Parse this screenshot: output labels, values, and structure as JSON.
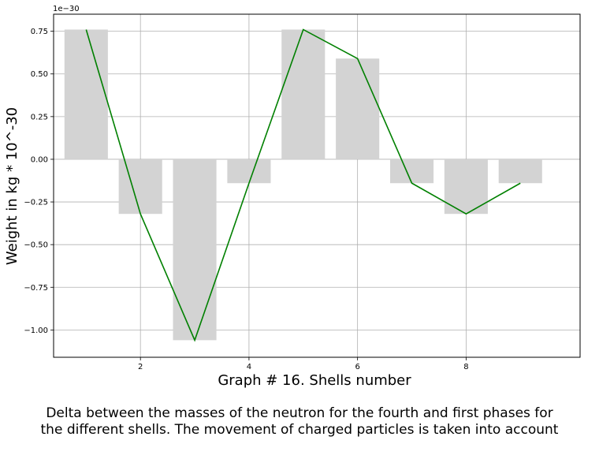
{
  "chart_data": {
    "type": "bar",
    "x": [
      1,
      2,
      3,
      4,
      5,
      6,
      7,
      8,
      9
    ],
    "values": [
      0.76,
      -0.32,
      -1.06,
      -0.14,
      0.76,
      0.59,
      -0.14,
      -0.32,
      -0.14
    ],
    "line_values": [
      0.76,
      -0.32,
      -1.06,
      -0.14,
      0.76,
      0.59,
      -0.14,
      -0.32,
      -0.14
    ],
    "scale_label": "1e−30",
    "xlabel": "Graph # 16. Shells number",
    "ylabel": "Weight in kg * 10^-30",
    "xlim": [
      0.4,
      10.1
    ],
    "ylim": [
      -1.16,
      0.85
    ],
    "xticks": [
      2,
      4,
      6,
      8
    ],
    "xtick_labels": [
      "2",
      "4",
      "6",
      "8"
    ],
    "yticks": [
      0.75,
      0.5,
      0.25,
      0.0,
      -0.25,
      -0.5,
      -0.75,
      -1.0
    ],
    "ytick_labels": [
      "0.75",
      "0.50",
      "0.25",
      "0.00",
      "−0.25",
      "−0.50",
      "−0.75",
      "−1.00"
    ],
    "grid": true,
    "bar_color": "#d3d3d3",
    "line_color": "#008000"
  },
  "caption": {
    "line1": "Delta between the masses of the neutron for the fourth and first phases for",
    "line2": "the different shells. The movement of charged particles is taken into account"
  }
}
